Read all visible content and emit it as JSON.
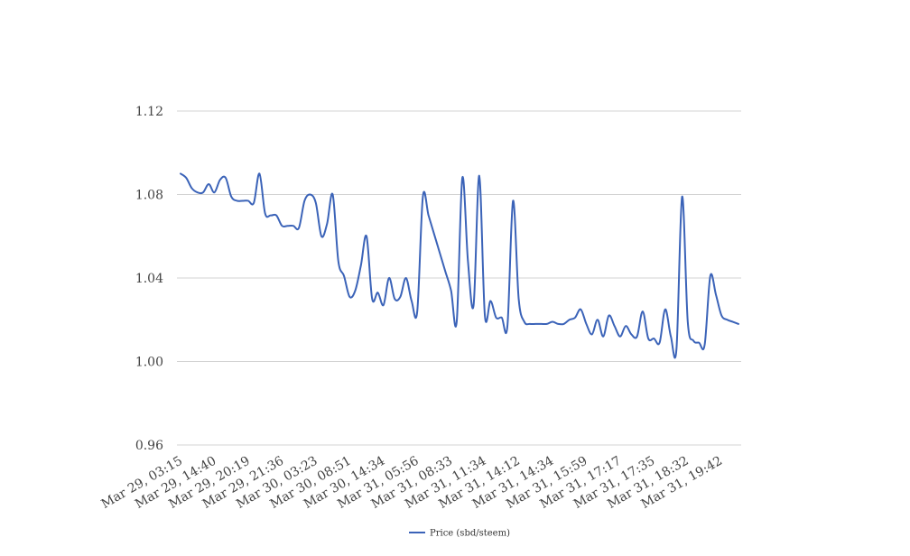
{
  "chart_data": {
    "type": "line",
    "ylim": [
      0.96,
      1.12
    ],
    "y_ticks": [
      "0.96",
      "1.00",
      "1.04",
      "1.08",
      "1.12"
    ],
    "grid": true,
    "legend_position": "bottom",
    "x_tick_labels": [
      "Mar 29, 03:15",
      "Mar 29, 14:40",
      "Mar 29, 20:19",
      "Mar 29, 21:36",
      "Mar 30, 03:23",
      "Mar 30, 08:51",
      "Mar 30, 14:34",
      "Mar 31, 05:56",
      "Mar 31, 08:33",
      "Mar 31, 11:34",
      "Mar 31, 14:12",
      "Mar 31, 14:34",
      "Mar 31, 15:59",
      "Mar 31, 17:17",
      "Mar 31, 17:35",
      "Mar 31, 18:32",
      "Mar 31, 19:42"
    ],
    "series": [
      {
        "name": "Price (sbd/steem)",
        "color": "#3b63b8",
        "values": [
          1.09,
          1.088,
          1.083,
          1.081,
          1.081,
          1.085,
          1.081,
          1.087,
          1.088,
          1.079,
          1.077,
          1.077,
          1.077,
          1.076,
          1.09,
          1.071,
          1.07,
          1.07,
          1.065,
          1.065,
          1.065,
          1.064,
          1.077,
          1.08,
          1.076,
          1.06,
          1.066,
          1.08,
          1.048,
          1.041,
          1.031,
          1.034,
          1.046,
          1.06,
          1.03,
          1.033,
          1.027,
          1.04,
          1.03,
          1.031,
          1.04,
          1.029,
          1.024,
          1.079,
          1.07,
          1.061,
          1.052,
          1.043,
          1.034,
          1.019,
          1.088,
          1.048,
          1.027,
          1.089,
          1.022,
          1.029,
          1.021,
          1.021,
          1.017,
          1.077,
          1.03,
          1.019,
          1.018,
          1.018,
          1.018,
          1.018,
          1.019,
          1.018,
          1.018,
          1.02,
          1.021,
          1.025,
          1.018,
          1.013,
          1.02,
          1.012,
          1.022,
          1.017,
          1.012,
          1.017,
          1.013,
          1.012,
          1.024,
          1.011,
          1.011,
          1.009,
          1.025,
          1.012,
          1.006,
          1.079,
          1.019,
          1.01,
          1.009,
          1.008,
          1.041,
          1.032,
          1.022,
          1.02,
          1.019,
          1.018
        ]
      }
    ]
  }
}
